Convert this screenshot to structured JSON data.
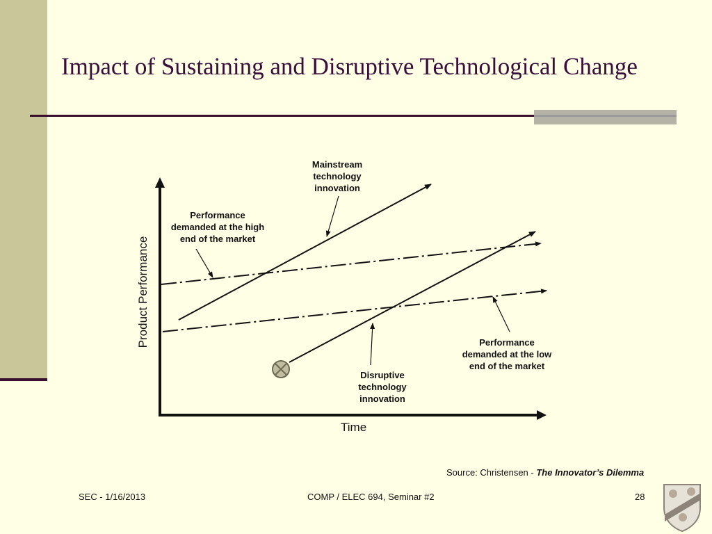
{
  "slide": {
    "title": "Impact of Sustaining and Disruptive Technological Change"
  },
  "diagram": {
    "x_axis_label": "Time",
    "y_axis_label": "Product Performance",
    "labels": {
      "mainstream": [
        "Mainstream",
        "technology",
        "innovation"
      ],
      "high_end": [
        "Performance",
        "demanded at the high",
        "end of the market"
      ],
      "low_end": [
        "Performance",
        "demanded at the low",
        "end of the market"
      ],
      "disruptive": [
        "Disruptive",
        "technology",
        "innovation"
      ]
    }
  },
  "source": {
    "prefix": "Source: Christensen - ",
    "book": "The Innovator’s Dilemma"
  },
  "footer": {
    "left": "SEC - 1/16/2013",
    "center": "COMP / ELEC 694, Seminar #2",
    "page": "28"
  },
  "colors": {
    "background": "#ffffe6",
    "title": "#3a0e3a",
    "side_bar": "#c9c79a"
  },
  "icons": {
    "start_marker": "circle-x-icon",
    "logo": "rice-crest-icon"
  }
}
